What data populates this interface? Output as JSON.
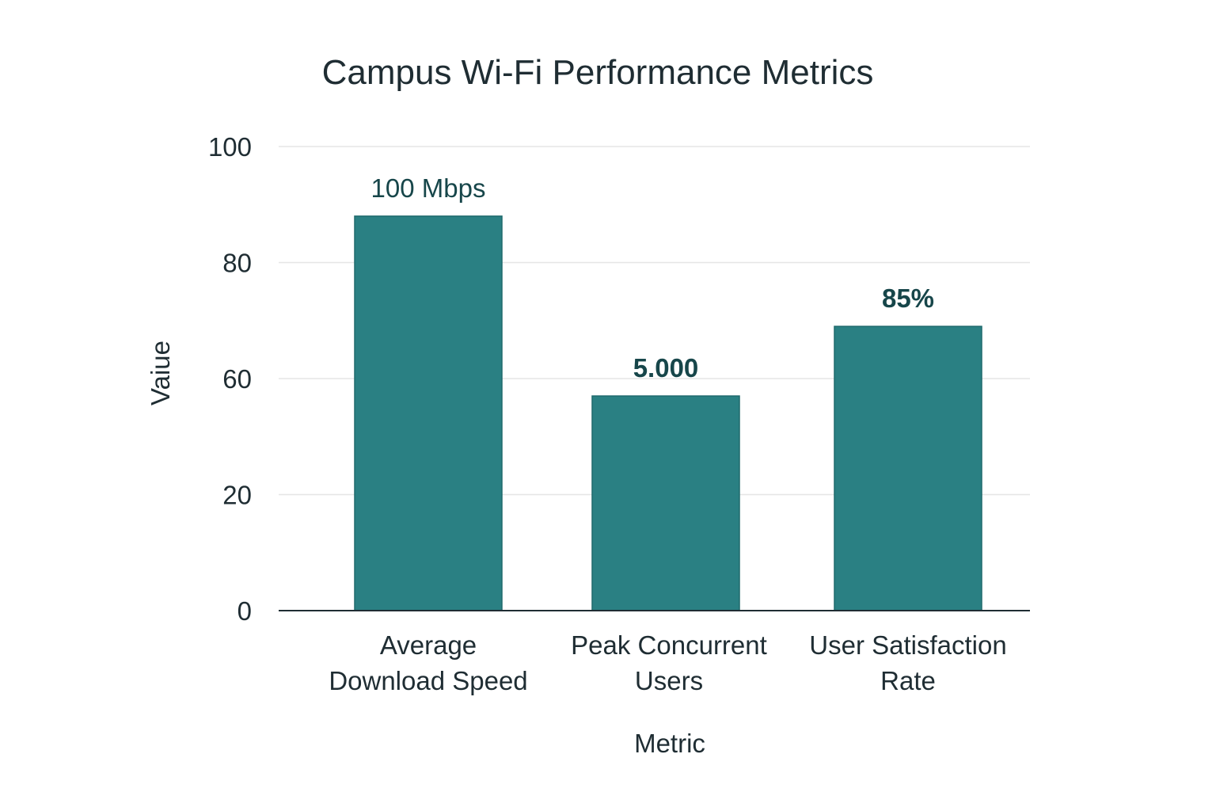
{
  "chart_data": {
    "type": "bar",
    "title": "Campus Wi-Fi Performance Metrics",
    "xlabel": "Metric",
    "ylabel": "Vaiue",
    "y_ticks": [
      "0",
      "20",
      "60",
      "80",
      "100"
    ],
    "y_tick_values": [
      0,
      20,
      60,
      80,
      100
    ],
    "ylim": [
      0,
      100
    ],
    "grid": true,
    "categories": [
      [
        "Average",
        "Download Speed"
      ],
      [
        "Peak Concurrent",
        "Users"
      ],
      [
        "User Satisfaction",
        "Rate"
      ]
    ],
    "values": [
      88,
      54,
      69
    ],
    "data_labels": [
      "100 Mbps",
      "5.000",
      "85%"
    ],
    "colors": {
      "bar": "#2a8083",
      "bar_edge": "#1f6a6d",
      "grid": "#e6e6e6",
      "axis": "#1f2d33",
      "label": "#17464a"
    }
  }
}
